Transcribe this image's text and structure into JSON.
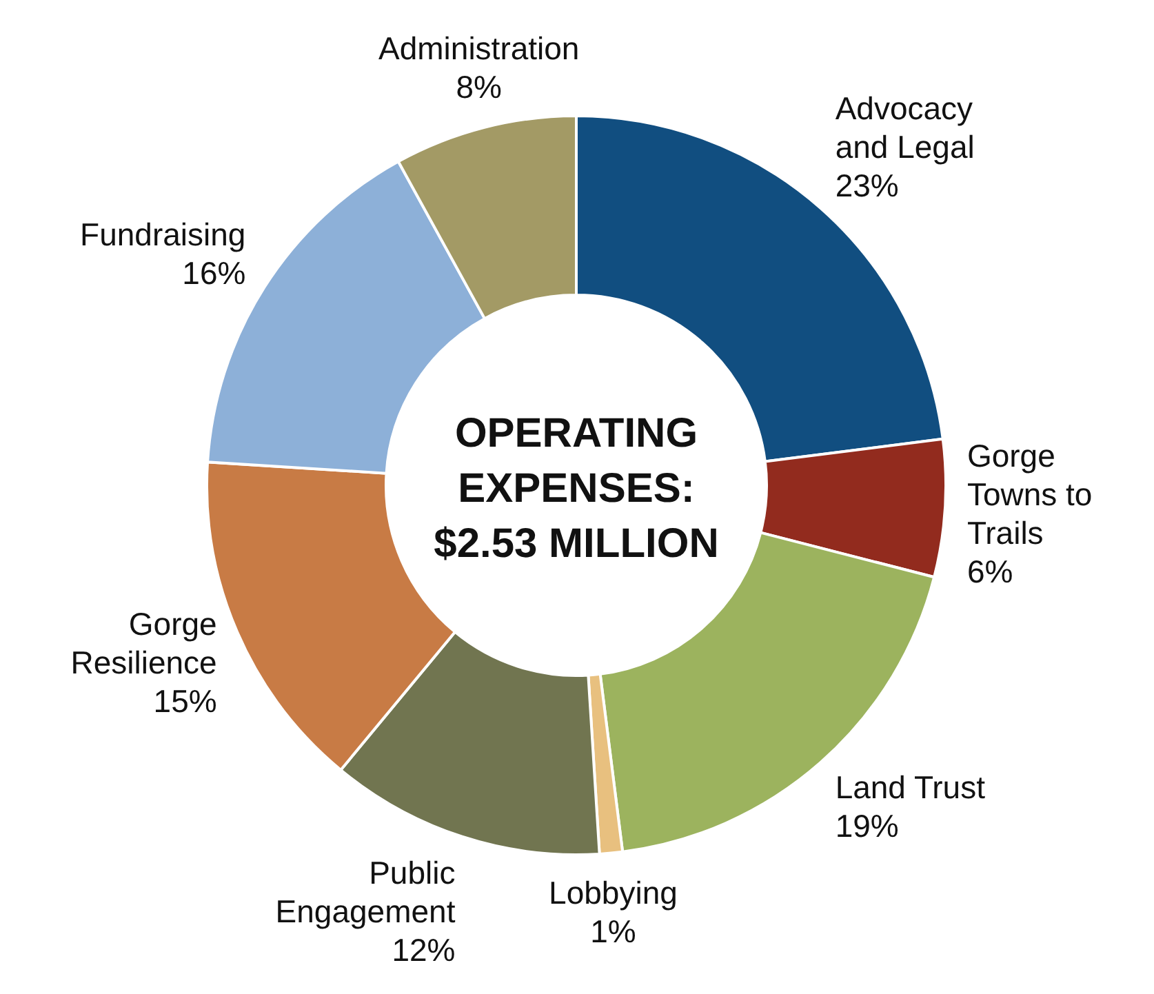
{
  "chart_data": {
    "type": "donut",
    "title": "OPERATING EXPENSES: $2.53 MILLION",
    "categories": [
      "Advocacy and Legal",
      "Gorge Towns to Trails",
      "Land Trust",
      "Lobbying",
      "Public Engagement",
      "Gorge Resilience",
      "Fundraising",
      "Administration"
    ],
    "values": [
      23,
      6,
      19,
      1,
      12,
      15,
      16,
      8
    ],
    "value_labels": [
      "23%",
      "6%",
      "19%",
      "1%",
      "12%",
      "15%",
      "16%",
      "8%"
    ],
    "colors": [
      "#114e80",
      "#922b1e",
      "#9cb35e",
      "#e8c07f",
      "#717550",
      "#c87b45",
      "#8db0d8",
      "#a39a65"
    ],
    "legend": false
  }
}
